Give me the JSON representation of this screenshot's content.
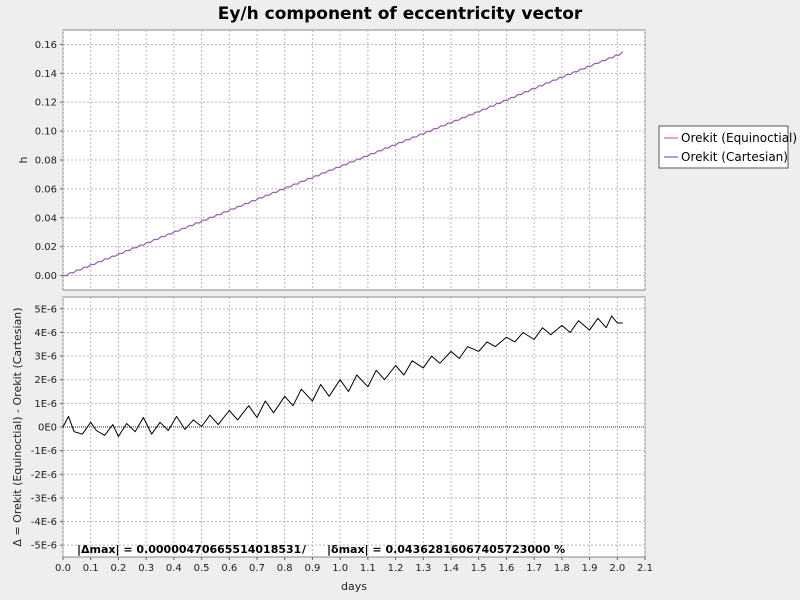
{
  "chart_data": [
    {
      "type": "line",
      "title": "Ey/h component of eccentricity vector",
      "ylabel": "h",
      "xlim": [
        0.0,
        2.1
      ],
      "ylim": [
        -0.01,
        0.17
      ],
      "yticks": [
        "0.00",
        "0.02",
        "0.04",
        "0.06",
        "0.08",
        "0.10",
        "0.12",
        "0.14",
        "0.16"
      ],
      "grid": true,
      "legend_placement": "right",
      "x": [
        0.0,
        0.25,
        0.5,
        0.75,
        1.0,
        1.25,
        1.5,
        1.75,
        2.0,
        2.02
      ],
      "series": [
        {
          "name": "Orekit (Equinoctial)",
          "color": "#e06a7a",
          "values": [
            0.0,
            0.019,
            0.038,
            0.057,
            0.076,
            0.095,
            0.114,
            0.134,
            0.153,
            0.155
          ]
        },
        {
          "name": "Orekit (Cartesian)",
          "color": "#7a5ad6",
          "values": [
            0.0,
            0.019,
            0.038,
            0.057,
            0.076,
            0.095,
            0.114,
            0.134,
            0.153,
            0.155
          ]
        }
      ]
    },
    {
      "type": "line",
      "ylabel": "Δ = Orekit (Equinoctial) - Orekit (Cartesian)",
      "xlabel": "days",
      "xlim": [
        0.0,
        2.1
      ],
      "ylim": [
        -5.5e-06,
        5.5e-06
      ],
      "xticks": [
        "0.0",
        "0.1",
        "0.2",
        "0.3",
        "0.4",
        "0.5",
        "0.6",
        "0.7",
        "0.8",
        "0.9",
        "1.0",
        "1.1",
        "1.2",
        "1.3",
        "1.4",
        "1.5",
        "1.6",
        "1.7",
        "1.8",
        "1.9",
        "2.0",
        "2.1"
      ],
      "yticks": [
        "-5E-6",
        "-4E-6",
        "-3E-6",
        "-2E-6",
        "-1E-6",
        "0E0",
        "1E-6",
        "2E-6",
        "3E-6",
        "4E-6",
        "5E-6"
      ],
      "grid": true,
      "x": [
        0.0,
        0.02,
        0.04,
        0.07,
        0.1,
        0.12,
        0.15,
        0.18,
        0.2,
        0.23,
        0.26,
        0.29,
        0.32,
        0.35,
        0.38,
        0.41,
        0.44,
        0.47,
        0.5,
        0.53,
        0.56,
        0.6,
        0.63,
        0.67,
        0.7,
        0.73,
        0.76,
        0.8,
        0.83,
        0.86,
        0.9,
        0.93,
        0.96,
        1.0,
        1.03,
        1.06,
        1.1,
        1.13,
        1.16,
        1.2,
        1.23,
        1.26,
        1.3,
        1.33,
        1.36,
        1.4,
        1.43,
        1.46,
        1.5,
        1.53,
        1.56,
        1.6,
        1.63,
        1.66,
        1.7,
        1.73,
        1.76,
        1.8,
        1.83,
        1.86,
        1.9,
        1.93,
        1.96,
        1.98,
        2.0,
        2.02
      ],
      "series": [
        {
          "name": "Δ",
          "color": "#000000",
          "values": [
            0.0,
            4.5e-07,
            -2e-07,
            -3e-07,
            2e-07,
            -1.5e-07,
            -3.5e-07,
            1e-07,
            -4e-07,
            1.5e-07,
            -2e-07,
            4e-07,
            -3e-07,
            2e-07,
            -1.5e-07,
            4.5e-07,
            -1e-07,
            3e-07,
            2e-08,
            5e-07,
            1e-07,
            7e-07,
            3e-07,
            9e-07,
            4e-07,
            1.1e-06,
            6e-07,
            1.3e-06,
            9e-07,
            1.6e-06,
            1.1e-06,
            1.8e-06,
            1.3e-06,
            2e-06,
            1.5e-06,
            2.2e-06,
            1.7e-06,
            2.4e-06,
            2e-06,
            2.6e-06,
            2.2e-06,
            2.8e-06,
            2.5e-06,
            3e-06,
            2.7e-06,
            3.2e-06,
            2.9e-06,
            3.4e-06,
            3.2e-06,
            3.6e-06,
            3.4e-06,
            3.8e-06,
            3.6e-06,
            4e-06,
            3.7e-06,
            4.2e-06,
            3.9e-06,
            4.3e-06,
            4e-06,
            4.5e-06,
            4.1e-06,
            4.6e-06,
            4.2e-06,
            4.7e-06,
            4.4e-06,
            4.4e-06
          ]
        }
      ]
    }
  ],
  "stats": {
    "delta_max": "|Δmax| = 0.0000047066551401853​1",
    "separator": "/",
    "delta_rel": "|δmax| = 0.04362816067405723000 %"
  }
}
